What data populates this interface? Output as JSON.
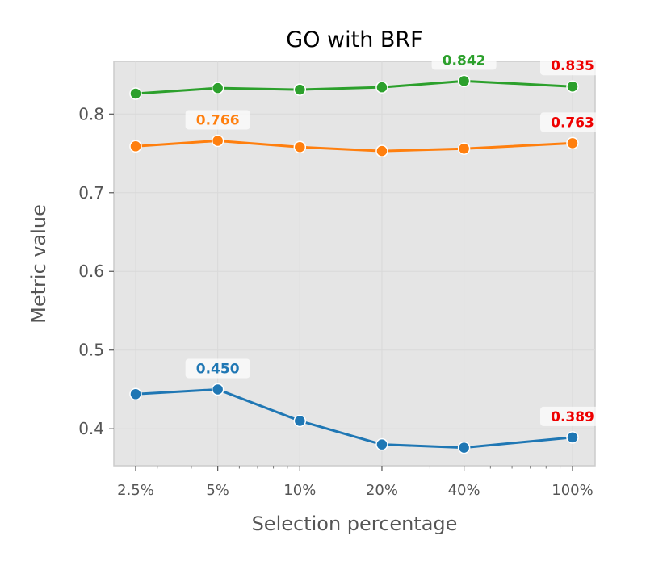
{
  "chart_data": {
    "type": "line",
    "title": "GO with BRF",
    "xlabel": "Selection percentage",
    "ylabel": "Metric value",
    "x": [
      2.5,
      5,
      10,
      20,
      40,
      100
    ],
    "x_tick_labels": [
      "2.5%",
      "5%",
      "10%",
      "20%",
      "40%",
      "100%"
    ],
    "x_scale": "log",
    "y_ticks": [
      "0.4",
      "0.5",
      "0.6",
      "0.7",
      "0.8"
    ],
    "y_tick_values": [
      0.4,
      0.5,
      0.6,
      0.7,
      0.8
    ],
    "ylim": [
      0.353,
      0.867
    ],
    "grid": true,
    "series": [
      {
        "color": "#2ca02c",
        "values": [
          0.826,
          0.833,
          0.831,
          0.834,
          0.842,
          0.835
        ]
      },
      {
        "color": "#ff7f0e",
        "values": [
          0.759,
          0.766,
          0.758,
          0.753,
          0.756,
          0.763
        ]
      },
      {
        "color": "#1f77b4",
        "values": [
          0.444,
          0.45,
          0.41,
          0.38,
          0.376,
          0.389
        ]
      }
    ],
    "annotations": [
      {
        "series": 0,
        "index": 4,
        "text": "0.842",
        "color": "#2ca02c"
      },
      {
        "series": 0,
        "index": 5,
        "text": "0.835",
        "color": "#ee0000"
      },
      {
        "series": 1,
        "index": 1,
        "text": "0.766",
        "color": "#ff7f0e"
      },
      {
        "series": 1,
        "index": 5,
        "text": "0.763",
        "color": "#ee0000"
      },
      {
        "series": 2,
        "index": 1,
        "text": "0.450",
        "color": "#1f77b4"
      },
      {
        "series": 2,
        "index": 5,
        "text": "0.389",
        "color": "#ee0000"
      }
    ]
  },
  "colors": {
    "plot_background": "#e5e5e5",
    "grid": "#d9d9d9",
    "frame": "#cccccc"
  }
}
